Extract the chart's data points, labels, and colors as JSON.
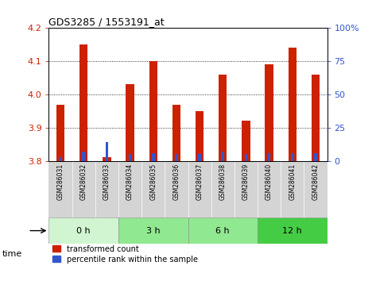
{
  "title": "GDS3285 / 1553191_at",
  "samples": [
    "GSM286031",
    "GSM286032",
    "GSM286033",
    "GSM286034",
    "GSM286035",
    "GSM286036",
    "GSM286037",
    "GSM286038",
    "GSM286039",
    "GSM286040",
    "GSM286041",
    "GSM286042"
  ],
  "transformed_count": [
    3.97,
    4.15,
    3.81,
    4.03,
    4.1,
    3.97,
    3.95,
    4.06,
    3.92,
    4.09,
    4.14,
    4.06
  ],
  "percentile_rank": [
    3,
    7,
    14,
    5,
    6,
    5,
    5,
    7,
    5,
    6,
    6,
    6
  ],
  "base_value": 3.8,
  "ylim_left": [
    3.8,
    4.2
  ],
  "ylim_right": [
    0,
    100
  ],
  "yticks_left": [
    3.8,
    3.9,
    4.0,
    4.1,
    4.2
  ],
  "yticks_right": [
    0,
    25,
    50,
    75,
    100
  ],
  "bar_color_red": "#cc2200",
  "bar_color_blue": "#3355cc",
  "groups": [
    {
      "label": "0 h",
      "start": 0,
      "end": 2,
      "color": "#d0f5d0"
    },
    {
      "label": "3 h",
      "start": 3,
      "end": 5,
      "color": "#90e890"
    },
    {
      "label": "6 h",
      "start": 6,
      "end": 8,
      "color": "#90e890"
    },
    {
      "label": "12 h",
      "start": 9,
      "end": 11,
      "color": "#44cc44"
    }
  ],
  "legend_red": "transformed count",
  "legend_blue": "percentile rank within the sample",
  "bar_width": 0.35,
  "blue_bar_width": 0.13,
  "sample_bg": "#d4d4d4",
  "plot_bg": "#ffffff"
}
